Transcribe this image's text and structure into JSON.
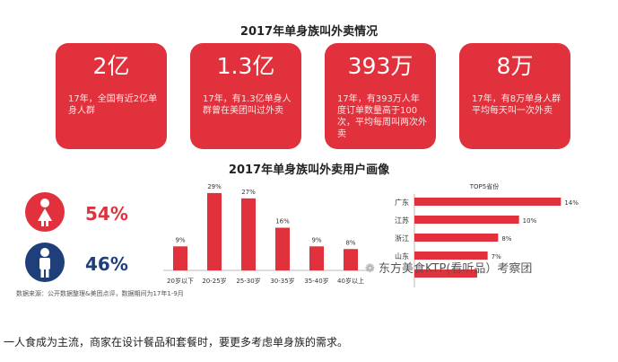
{
  "header": {
    "title": "2017年单身族叫外卖情况"
  },
  "cards": [
    {
      "big": "2亿",
      "desc": "17年，全国有近2亿单身人群"
    },
    {
      "big": "1.3亿",
      "desc": "17年，有1.3亿单身人群曾在美团叫过外卖"
    },
    {
      "big": "393万",
      "desc": "17年，有393万人年度订单数量高于100次，平均每周叫两次外卖"
    },
    {
      "big": "8万",
      "desc": "17年，有8万单身人群平均每天叫一次外卖"
    }
  ],
  "section2": {
    "title": "2017年单身族叫外卖用户画像"
  },
  "gender": [
    {
      "pct": "54%",
      "icon": "female-icon",
      "color": "#e0313c"
    },
    {
      "pct": "46%",
      "icon": "male-icon",
      "color": "#1f3f7a"
    }
  ],
  "source": "数据来源：公开数据整理&美团点评，数据期间为17年1-9月",
  "watermark": "东方美食KTP(看听品）考察团",
  "bottom_text": "一人食成为主流，商家在设计餐品和套餐时，要更多考虑单身族的需求。",
  "colors": {
    "accent": "#e0313c",
    "male": "#1f3f7a"
  },
  "chart_data": [
    {
      "type": "bar",
      "title": "",
      "categories": [
        "20岁以下",
        "20-25岁",
        "25-30岁",
        "30-35岁",
        "35-40岁",
        "40岁以上"
      ],
      "values": [
        9,
        29,
        27,
        16,
        9,
        8
      ],
      "labels": [
        "9%",
        "29%",
        "27%",
        "16%",
        "9%",
        "8%"
      ],
      "ylim": [
        0,
        32
      ]
    },
    {
      "type": "bar",
      "orientation": "horizontal",
      "title": "TOP5省份",
      "categories": [
        "广东",
        "江苏",
        "浙江",
        "山东",
        ""
      ],
      "values": [
        14,
        10,
        8,
        7,
        6
      ],
      "labels": [
        "14%",
        "10%",
        "8%",
        "7%",
        ""
      ],
      "xlim": [
        0,
        15
      ]
    }
  ]
}
